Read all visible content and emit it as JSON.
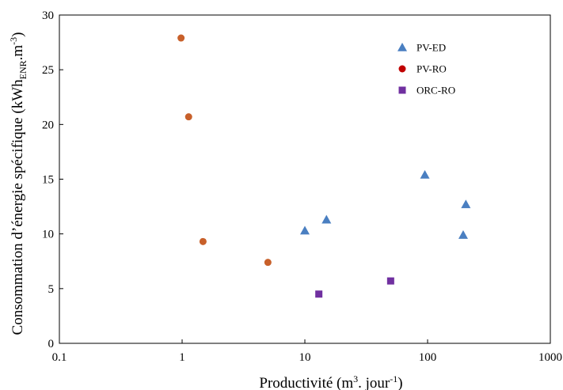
{
  "chart_data": {
    "type": "scatter",
    "xscale": "log",
    "xlim": [
      0.1,
      1000
    ],
    "ylim": [
      0,
      30
    ],
    "x_ticks": [
      "0.1",
      "1",
      "10",
      "100",
      "1000"
    ],
    "y_ticks": [
      "0",
      "5",
      "10",
      "15",
      "20",
      "25",
      "30"
    ],
    "grid": false,
    "legend_position": "top-right",
    "xlabel": {
      "main": "Productivité (m",
      "sup1": "3",
      "mid": ". jour",
      "sup2": "-1",
      "end": ")"
    },
    "ylabel": {
      "main": "Consommation d’énergie spécifique (kWh",
      "sub": "ENR",
      "mid": ".m",
      "sup": "-3",
      "end": ")"
    },
    "series": [
      {
        "name": "PV-ED",
        "marker": "triangle",
        "color": "#4a7fc1",
        "x": [
          10,
          15,
          95,
          195,
          205
        ],
        "y": [
          10.3,
          11.3,
          15.4,
          9.9,
          12.7
        ]
      },
      {
        "name": "PV-RO",
        "marker": "circle",
        "color": "#c8602a",
        "legend_color": "#c00000",
        "x": [
          0.98,
          1.13,
          1.48,
          5.0
        ],
        "y": [
          27.9,
          20.7,
          9.3,
          7.4
        ]
      },
      {
        "name": "ORC-RO",
        "marker": "square",
        "color": "#7030a0",
        "x": [
          13,
          50
        ],
        "y": [
          4.5,
          5.7
        ]
      }
    ]
  }
}
